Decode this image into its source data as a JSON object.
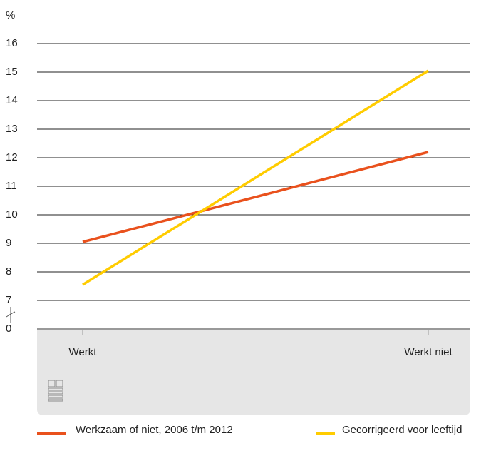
{
  "chart_data": {
    "type": "line",
    "y_unit": "%",
    "categories": [
      "Werkt",
      "Werkt niet"
    ],
    "series": [
      {
        "name": "Werkzaam of niet, 2006 t/m 2012",
        "color": "#e9511d",
        "values": [
          9.05,
          12.2
        ]
      },
      {
        "name": "Gecorrigeerd voor leeftijd",
        "color": "#ffcc00",
        "values": [
          7.55,
          15.05
        ]
      }
    ],
    "ylim": [
      0,
      16
    ],
    "axis_break": [
      0,
      7
    ],
    "yticks": [
      0,
      7,
      8,
      9,
      10,
      11,
      12,
      13,
      14,
      15,
      16
    ],
    "grid": true
  }
}
